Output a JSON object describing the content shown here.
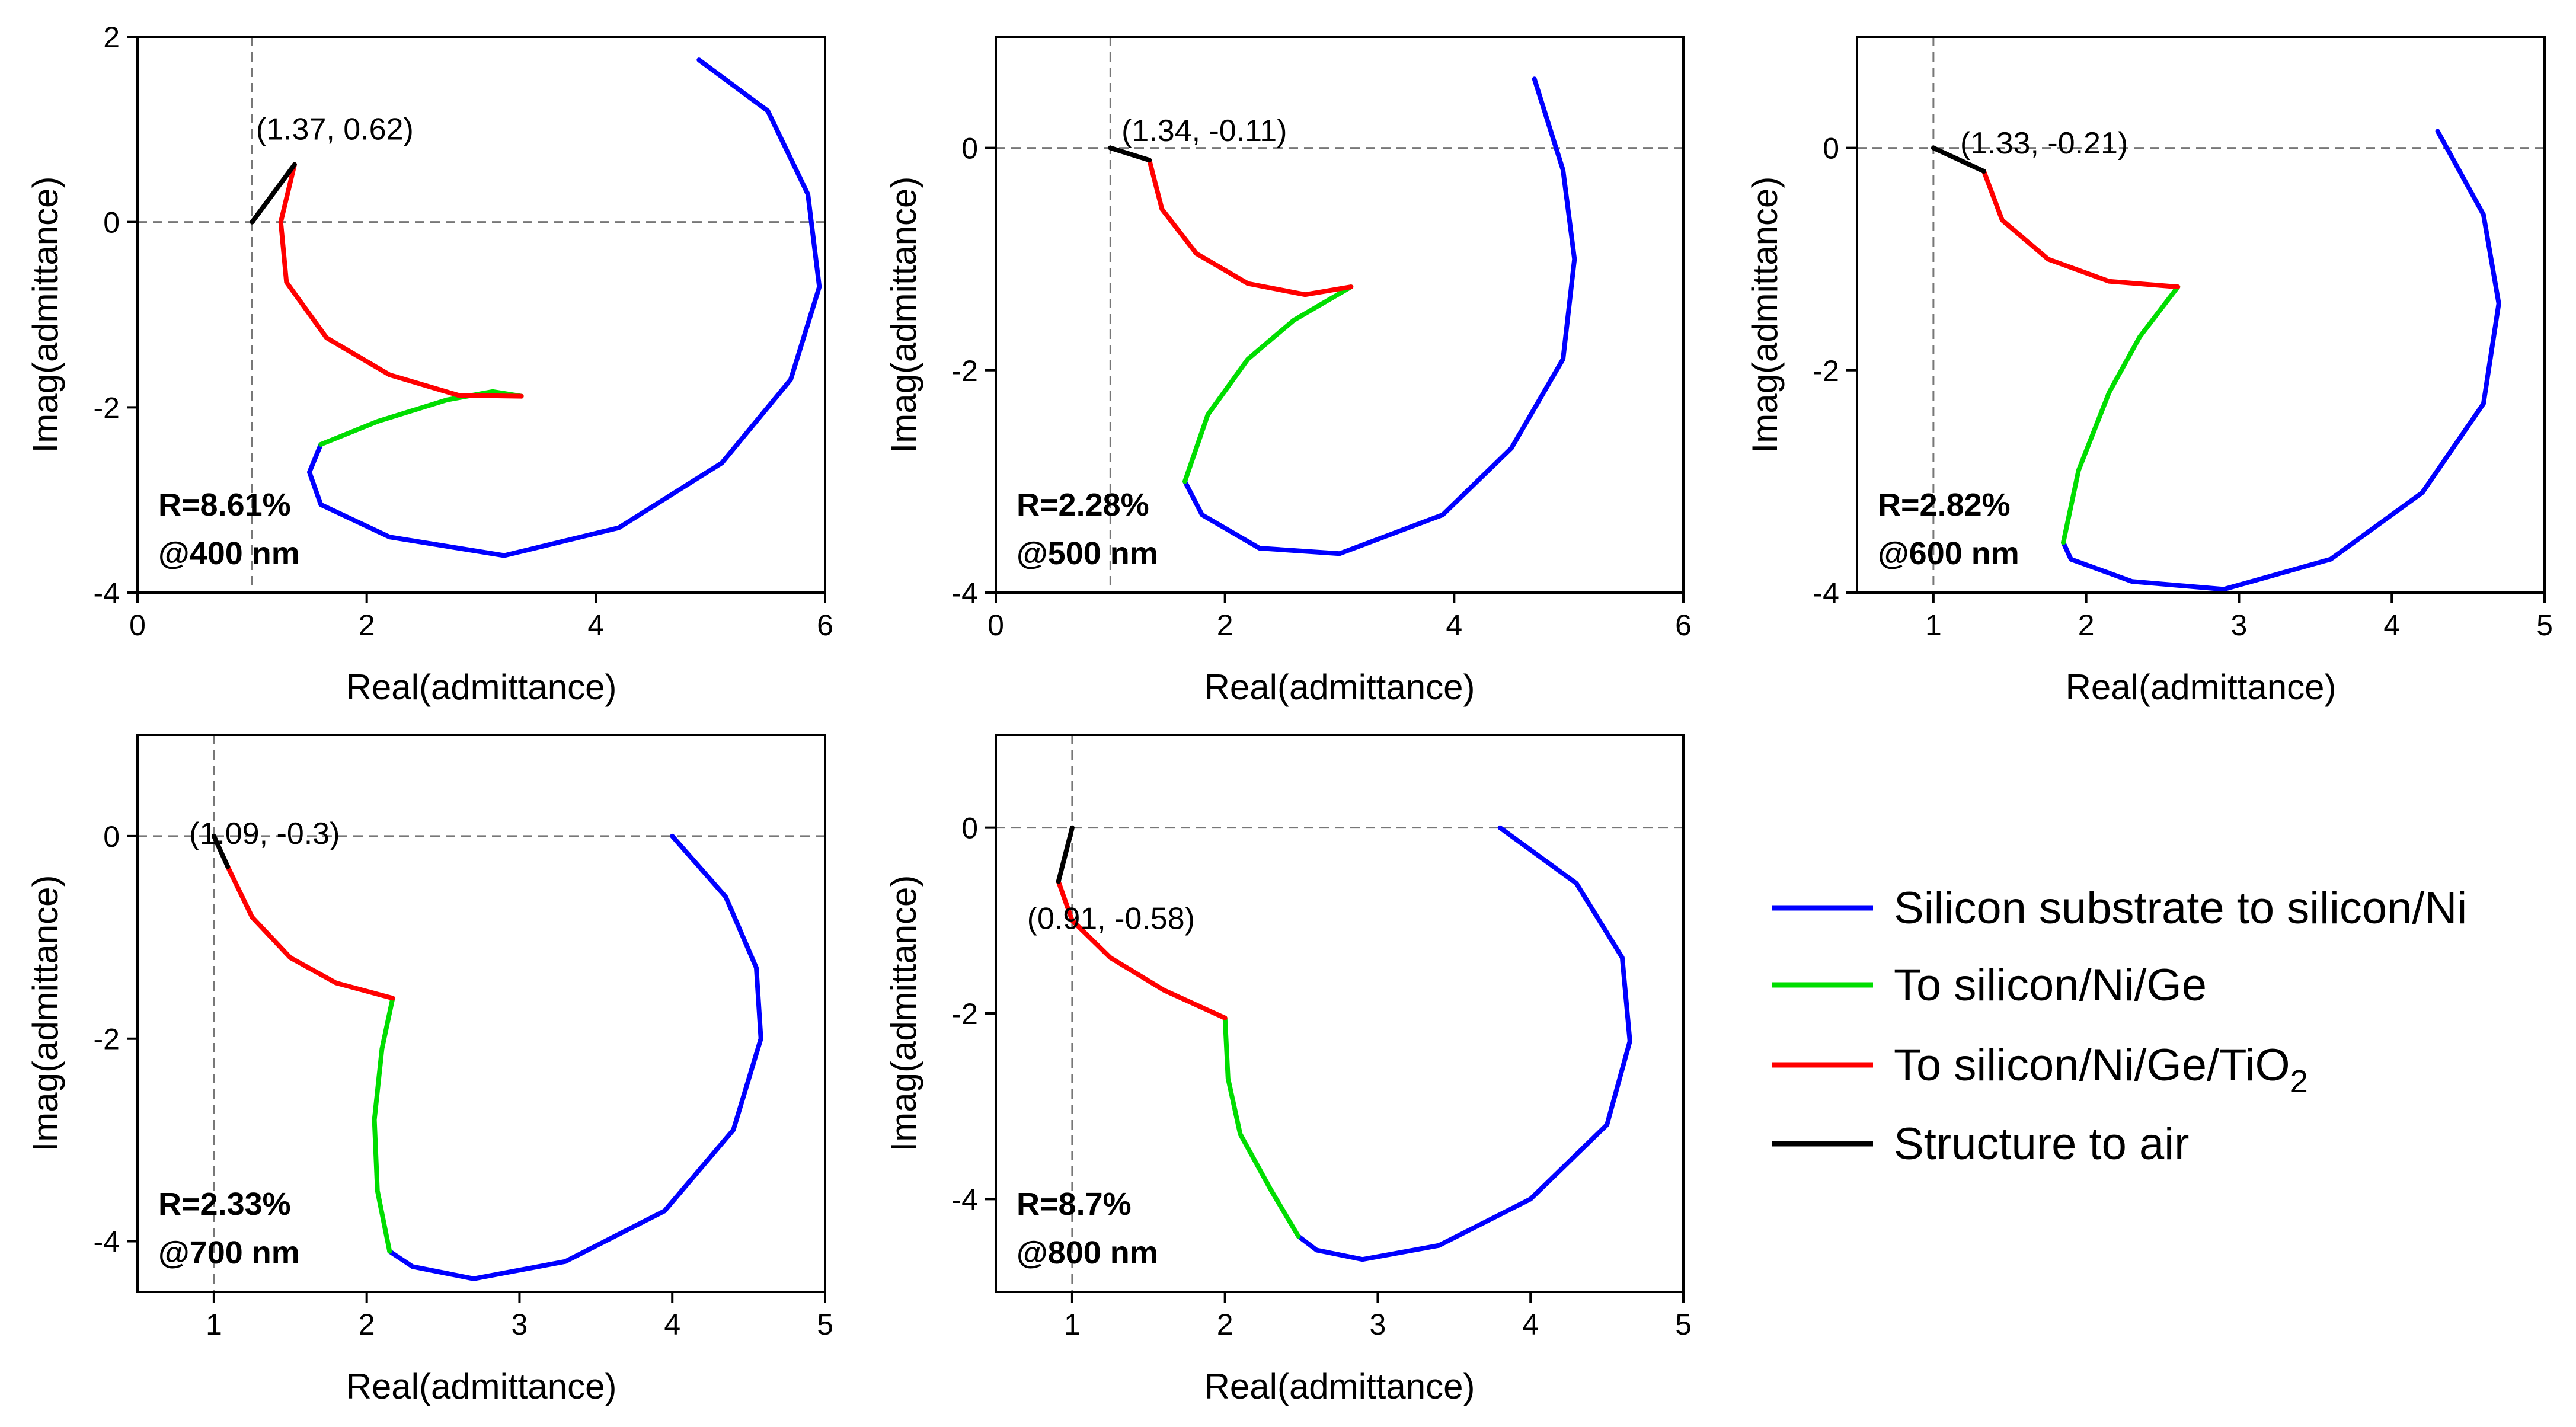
{
  "legend": {
    "items": [
      {
        "key": "si_ni",
        "label": "Silicon substrate to silicon/Ni",
        "color": "#0000ff"
      },
      {
        "key": "ge",
        "label": "To silicon/Ni/Ge",
        "color": "#00dd00"
      },
      {
        "key": "tio2",
        "label": "To silicon/Ni/Ge/TiO",
        "sub": "2",
        "color": "#ff0000"
      },
      {
        "key": "air",
        "label": "Structure to air",
        "color": "#000000"
      }
    ]
  },
  "chart_data": [
    {
      "type": "line",
      "xlabel": "Real(admittance)",
      "ylabel": "Imag(admittance)",
      "xlim": [
        0,
        6
      ],
      "ylim": [
        -4,
        2
      ],
      "xticks": [
        0,
        2,
        4,
        6
      ],
      "yticks": [
        -4,
        -2,
        0,
        2
      ],
      "ref_lines": {
        "x": 1,
        "y": 0
      },
      "annotation": "(1.37, 0.62)",
      "annotation_point": [
        1.37,
        0.62
      ],
      "r_label": "R=8.61%",
      "wavelength_label": "@400 nm",
      "series": [
        {
          "key": "si_ni",
          "points": [
            [
              4.9,
              1.75
            ],
            [
              5.5,
              1.2
            ],
            [
              5.85,
              0.3
            ],
            [
              5.95,
              -0.7
            ],
            [
              5.7,
              -1.7
            ],
            [
              5.1,
              -2.6
            ],
            [
              4.2,
              -3.3
            ],
            [
              3.2,
              -3.6
            ],
            [
              2.2,
              -3.4
            ],
            [
              1.6,
              -3.05
            ],
            [
              1.5,
              -2.7
            ],
            [
              1.6,
              -2.4
            ]
          ]
        },
        {
          "key": "ge",
          "points": [
            [
              1.6,
              -2.4
            ],
            [
              2.1,
              -2.15
            ],
            [
              2.7,
              -1.92
            ],
            [
              3.1,
              -1.83
            ],
            [
              3.35,
              -1.88
            ]
          ]
        },
        {
          "key": "tio2",
          "points": [
            [
              3.35,
              -1.88
            ],
            [
              2.8,
              -1.87
            ],
            [
              2.2,
              -1.65
            ],
            [
              1.65,
              -1.25
            ],
            [
              1.3,
              -0.65
            ],
            [
              1.25,
              0.0
            ],
            [
              1.37,
              0.62
            ]
          ]
        },
        {
          "key": "air",
          "points": [
            [
              1.37,
              0.62
            ],
            [
              1.0,
              0.0
            ]
          ]
        }
      ]
    },
    {
      "type": "line",
      "xlabel": "Real(admittance)",
      "ylabel": "Imag(admittance)",
      "xlim": [
        0,
        6
      ],
      "ylim": [
        -4,
        1
      ],
      "xticks": [
        0,
        2,
        4,
        6
      ],
      "yticks": [
        -4,
        -2,
        0
      ],
      "ref_lines": {
        "x": 1,
        "y": 0
      },
      "annotation": "(1.34, -0.11)",
      "annotation_point": [
        1.34,
        -0.11
      ],
      "r_label": "R=2.28%",
      "wavelength_label": "@500 nm",
      "series": [
        {
          "key": "si_ni",
          "points": [
            [
              4.7,
              0.62
            ],
            [
              4.95,
              -0.2
            ],
            [
              5.05,
              -1.0
            ],
            [
              4.95,
              -1.9
            ],
            [
              4.5,
              -2.7
            ],
            [
              3.9,
              -3.3
            ],
            [
              3.0,
              -3.65
            ],
            [
              2.3,
              -3.6
            ],
            [
              1.8,
              -3.3
            ],
            [
              1.65,
              -3.0
            ]
          ]
        },
        {
          "key": "ge",
          "points": [
            [
              1.65,
              -3.0
            ],
            [
              1.85,
              -2.4
            ],
            [
              2.2,
              -1.9
            ],
            [
              2.6,
              -1.55
            ],
            [
              3.1,
              -1.25
            ]
          ]
        },
        {
          "key": "tio2",
          "points": [
            [
              3.1,
              -1.25
            ],
            [
              2.7,
              -1.32
            ],
            [
              2.2,
              -1.22
            ],
            [
              1.75,
              -0.95
            ],
            [
              1.45,
              -0.55
            ],
            [
              1.34,
              -0.11
            ]
          ]
        },
        {
          "key": "air",
          "points": [
            [
              1.34,
              -0.11
            ],
            [
              1.0,
              0.0
            ]
          ]
        }
      ]
    },
    {
      "type": "line",
      "xlabel": "Real(admittance)",
      "ylabel": "Imag(admittance)",
      "xlim": [
        0.5,
        5
      ],
      "ylim": [
        -4,
        1
      ],
      "xticks": [
        1,
        2,
        3,
        4,
        5
      ],
      "yticks": [
        -4,
        -2,
        0
      ],
      "ref_lines": {
        "x": 1,
        "y": 0
      },
      "annotation": "(1.33, -0.21)",
      "annotation_point": [
        1.33,
        -0.21
      ],
      "r_label": "R=2.82%",
      "wavelength_label": "@600 nm",
      "series": [
        {
          "key": "si_ni",
          "points": [
            [
              4.3,
              0.15
            ],
            [
              4.6,
              -0.6
            ],
            [
              4.7,
              -1.4
            ],
            [
              4.6,
              -2.3
            ],
            [
              4.2,
              -3.1
            ],
            [
              3.6,
              -3.7
            ],
            [
              2.9,
              -3.97
            ],
            [
              2.3,
              -3.9
            ],
            [
              1.9,
              -3.7
            ],
            [
              1.85,
              -3.55
            ]
          ]
        },
        {
          "key": "ge",
          "points": [
            [
              1.85,
              -3.55
            ],
            [
              1.95,
              -2.9
            ],
            [
              2.15,
              -2.2
            ],
            [
              2.35,
              -1.7
            ],
            [
              2.6,
              -1.25
            ]
          ]
        },
        {
          "key": "tio2",
          "points": [
            [
              2.6,
              -1.25
            ],
            [
              2.15,
              -1.2
            ],
            [
              1.75,
              -1.0
            ],
            [
              1.45,
              -0.65
            ],
            [
              1.33,
              -0.21
            ]
          ]
        },
        {
          "key": "air",
          "points": [
            [
              1.33,
              -0.21
            ],
            [
              1.0,
              0.0
            ]
          ]
        }
      ]
    },
    {
      "type": "line",
      "xlabel": "Real(admittance)",
      "ylabel": "Imag(admittance)",
      "xlim": [
        0.5,
        5
      ],
      "ylim": [
        -4.5,
        1
      ],
      "xticks": [
        1,
        2,
        3,
        4,
        5
      ],
      "yticks": [
        -4,
        -2,
        0
      ],
      "ref_lines": {
        "x": 1,
        "y": 0
      },
      "annotation": "(1.09, -0.3)",
      "annotation_point": [
        1.09,
        -0.3
      ],
      "r_label": "R=2.33%",
      "wavelength_label": "@700 nm",
      "series": [
        {
          "key": "si_ni",
          "points": [
            [
              4.0,
              0.0
            ],
            [
              4.35,
              -0.6
            ],
            [
              4.55,
              -1.3
            ],
            [
              4.58,
              -2.0
            ],
            [
              4.4,
              -2.9
            ],
            [
              3.95,
              -3.7
            ],
            [
              3.3,
              -4.2
            ],
            [
              2.7,
              -4.37
            ],
            [
              2.3,
              -4.25
            ],
            [
              2.15,
              -4.1
            ]
          ]
        },
        {
          "key": "ge",
          "points": [
            [
              2.15,
              -4.1
            ],
            [
              2.07,
              -3.5
            ],
            [
              2.05,
              -2.8
            ],
            [
              2.1,
              -2.1
            ],
            [
              2.17,
              -1.6
            ]
          ]
        },
        {
          "key": "tio2",
          "points": [
            [
              2.17,
              -1.6
            ],
            [
              1.8,
              -1.45
            ],
            [
              1.5,
              -1.2
            ],
            [
              1.25,
              -0.8
            ],
            [
              1.09,
              -0.3
            ]
          ]
        },
        {
          "key": "air",
          "points": [
            [
              1.09,
              -0.3
            ],
            [
              1.0,
              0.0
            ]
          ]
        }
      ]
    },
    {
      "type": "line",
      "xlabel": "Real(admittance)",
      "ylabel": "Imag(admittance)",
      "xlim": [
        0.5,
        5
      ],
      "ylim": [
        -5,
        1
      ],
      "xticks": [
        1,
        2,
        3,
        4,
        5
      ],
      "yticks": [
        -4,
        -2,
        0
      ],
      "ref_lines": {
        "x": 1,
        "y": 0
      },
      "annotation": "(0.91, -0.58)",
      "annotation_point": [
        0.91,
        -0.58
      ],
      "r_label": "R=8.7%",
      "wavelength_label": "@800 nm",
      "series": [
        {
          "key": "si_ni",
          "points": [
            [
              3.8,
              0.0
            ],
            [
              4.3,
              -0.6
            ],
            [
              4.6,
              -1.4
            ],
            [
              4.65,
              -2.3
            ],
            [
              4.5,
              -3.2
            ],
            [
              4.0,
              -4.0
            ],
            [
              3.4,
              -4.5
            ],
            [
              2.9,
              -4.65
            ],
            [
              2.6,
              -4.55
            ],
            [
              2.48,
              -4.4
            ]
          ]
        },
        {
          "key": "ge",
          "points": [
            [
              2.48,
              -4.4
            ],
            [
              2.3,
              -3.9
            ],
            [
              2.1,
              -3.3
            ],
            [
              2.02,
              -2.7
            ],
            [
              2.0,
              -2.05
            ]
          ]
        },
        {
          "key": "tio2",
          "points": [
            [
              2.0,
              -2.05
            ],
            [
              1.6,
              -1.75
            ],
            [
              1.25,
              -1.4
            ],
            [
              1.0,
              -1.0
            ],
            [
              0.91,
              -0.58
            ]
          ]
        },
        {
          "key": "air",
          "points": [
            [
              0.91,
              -0.58
            ],
            [
              1.0,
              0.0
            ]
          ]
        }
      ]
    }
  ]
}
